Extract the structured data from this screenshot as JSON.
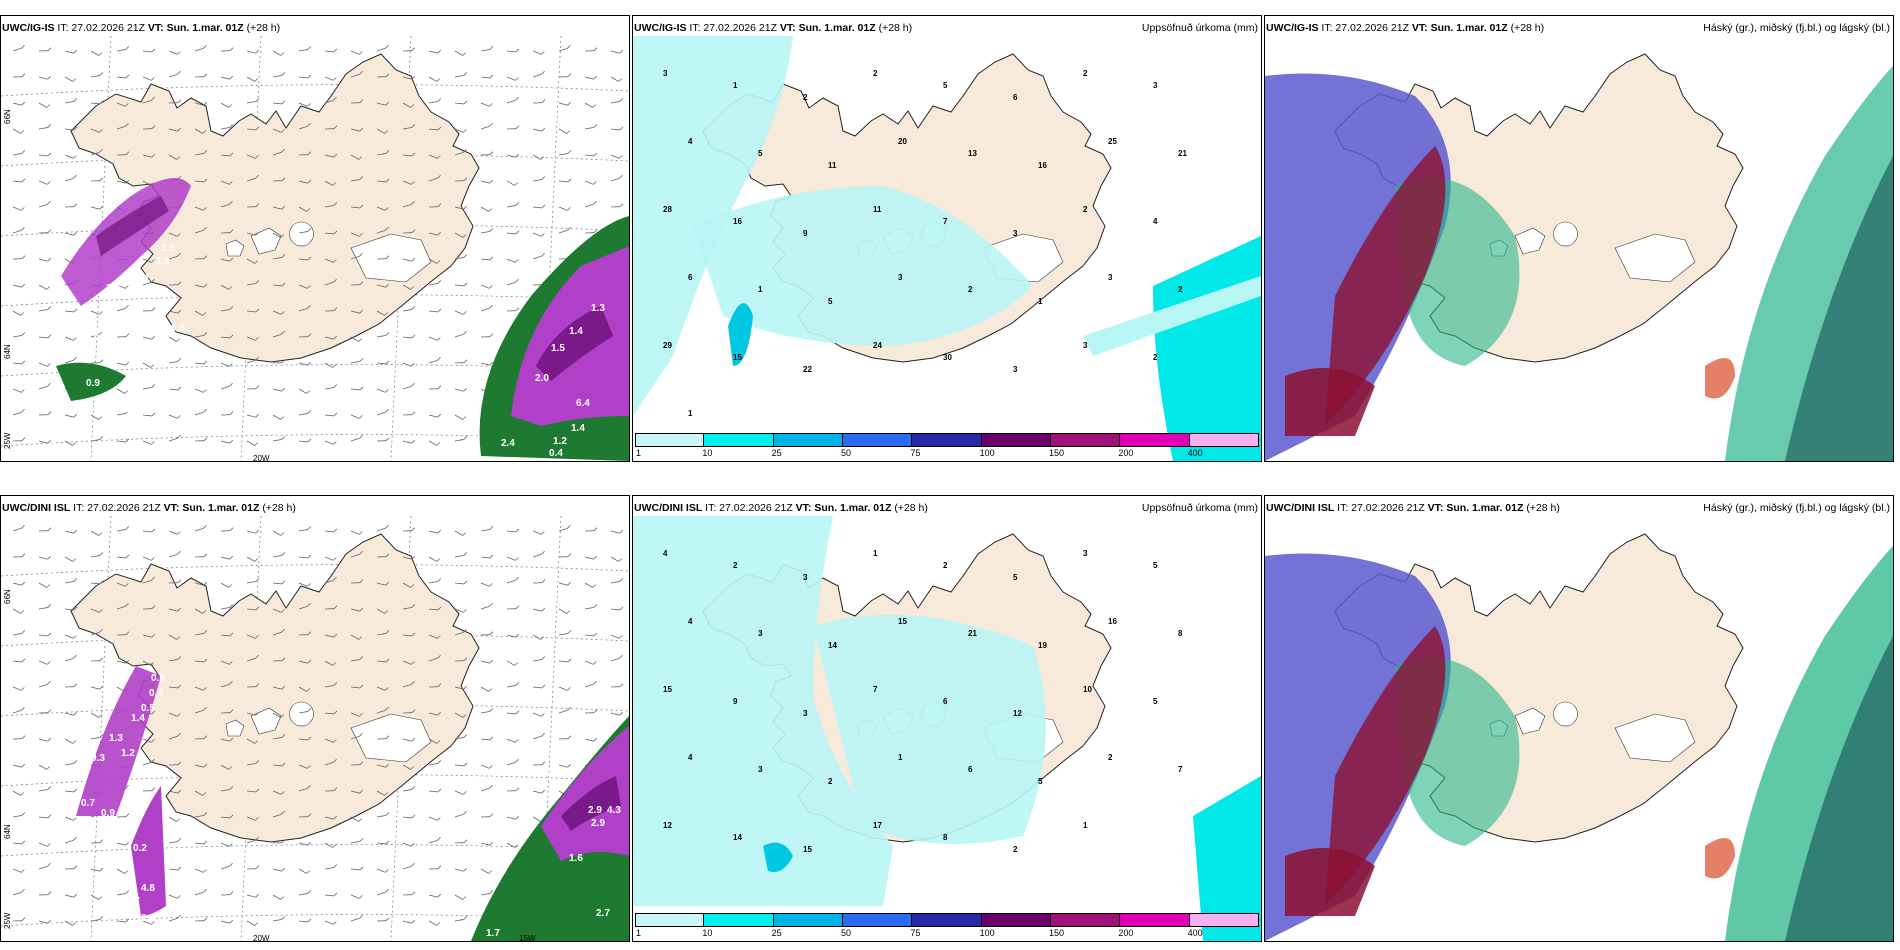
{
  "panels": [
    {
      "id": "p1",
      "model": "UWC/IG-IS",
      "it": "IT: 27.02.2026 21Z",
      "vt_label": "VT:",
      "vt": "Sun. 1.mar. 01Z",
      "lead": "(+28 h)",
      "right": "",
      "kind": "wind",
      "lat_labels": [
        "66N",
        "64N",
        "25W"
      ],
      "lon_labels": [
        "20W"
      ],
      "values": [
        "1.5",
        "1.6",
        "1.1",
        "1.3",
        "0.6",
        "0.9",
        "1.3",
        "1.5",
        "0.6",
        "1.4",
        "1.3",
        "1.4",
        "1.5",
        "2.0",
        "6.4",
        "1.4",
        "1.2",
        "2.4",
        "0.4",
        "0.7"
      ]
    },
    {
      "id": "p2",
      "model": "UWC/IG-IS",
      "it": "IT: 27.02.2026 21Z",
      "vt_label": "VT:",
      "vt": "Sun. 1.mar. 01Z",
      "lead": "(+28 h)",
      "right": "Uppsöfnuð úrkoma (mm)",
      "kind": "precip",
      "values": [
        "3",
        "1",
        "2",
        "2",
        "5",
        "6",
        "2",
        "3",
        "4",
        "5",
        "11",
        "20",
        "13",
        "16",
        "25",
        "21",
        "28",
        "16",
        "9",
        "11",
        "7",
        "3",
        "2",
        "4",
        "6",
        "1",
        "5",
        "3",
        "2",
        "1",
        "3",
        "2",
        "29",
        "15",
        "22",
        "24",
        "30",
        "3",
        "3",
        "2",
        "1"
      ]
    },
    {
      "id": "p3",
      "model": "UWC/IG-IS",
      "it": "IT: 27.02.2026 21Z",
      "vt_label": "VT:",
      "vt": "Sun. 1.mar. 01Z",
      "lead": "(+28 h)",
      "right": "Háský (gr.), miðský (fj.bl.) og lágský (bl.)",
      "kind": "cloud",
      "values": []
    },
    {
      "id": "p4",
      "model": "UWC/DINI ISL",
      "it": "IT: 27.02.2026 21Z",
      "vt_label": "VT:",
      "vt": "Sun. 1.mar. 01Z",
      "lead": "(+28 h)",
      "right": "",
      "kind": "wind",
      "lat_labels": [
        "66N",
        "64N",
        "25W"
      ],
      "lon_labels": [
        "20W",
        "15W"
      ],
      "values": [
        "0.6",
        "0.4",
        "0.5",
        "1.4",
        "1.3",
        "1.2",
        "0.3",
        "0.7",
        "0.9",
        "0.2",
        "4.8",
        "0.7",
        "0.2",
        "2.9",
        "4.3",
        "2.9",
        "1.6",
        "2.7",
        "1.7"
      ]
    },
    {
      "id": "p5",
      "model": "UWC/DINI ISL",
      "it": "IT: 27.02.2026 21Z",
      "vt_label": "VT:",
      "vt": "Sun. 1.mar. 01Z",
      "lead": "(+28 h)",
      "right": "Uppsöfnuð úrkoma (mm)",
      "kind": "precip",
      "values": [
        "4",
        "2",
        "3",
        "1",
        "2",
        "5",
        "3",
        "5",
        "4",
        "3",
        "14",
        "15",
        "21",
        "19",
        "16",
        "8",
        "15",
        "9",
        "3",
        "7",
        "6",
        "12",
        "10",
        "5",
        "4",
        "3",
        "2",
        "1",
        "6",
        "5",
        "2",
        "7",
        "12",
        "14",
        "15",
        "17",
        "8",
        "2",
        "1"
      ]
    },
    {
      "id": "p6",
      "model": "UWC/DINI ISL",
      "it": "IT: 27.02.2026 21Z",
      "vt_label": "VT:",
      "vt": "Sun. 1.mar. 01Z",
      "lead": "(+28 h)",
      "right": "Háský (gr.), miðský (fj.bl.) og lágský (bl.)",
      "kind": "cloud",
      "values": []
    }
  ],
  "colorbar": {
    "ticks": [
      "1",
      "10",
      "25",
      "50",
      "75",
      "100",
      "150",
      "200",
      "400"
    ],
    "colors": [
      "#c8f7f7",
      "#00f0f0",
      "#00b4e6",
      "#2c6cf0",
      "#2a2aa8",
      "#6a006a",
      "#a0107a",
      "#e000b8",
      "#f4b0f0"
    ]
  },
  "colors": {
    "land": "#f8eadb",
    "sea": "#ffffff",
    "precip_light": "#b8f5f5",
    "cloud_low": "#5a5ad0",
    "cloud_mid": "#2ab58a",
    "cloud_high": "#8c1030",
    "wind_green": "#1e7a30",
    "wind_purple": "#b040c8"
  }
}
